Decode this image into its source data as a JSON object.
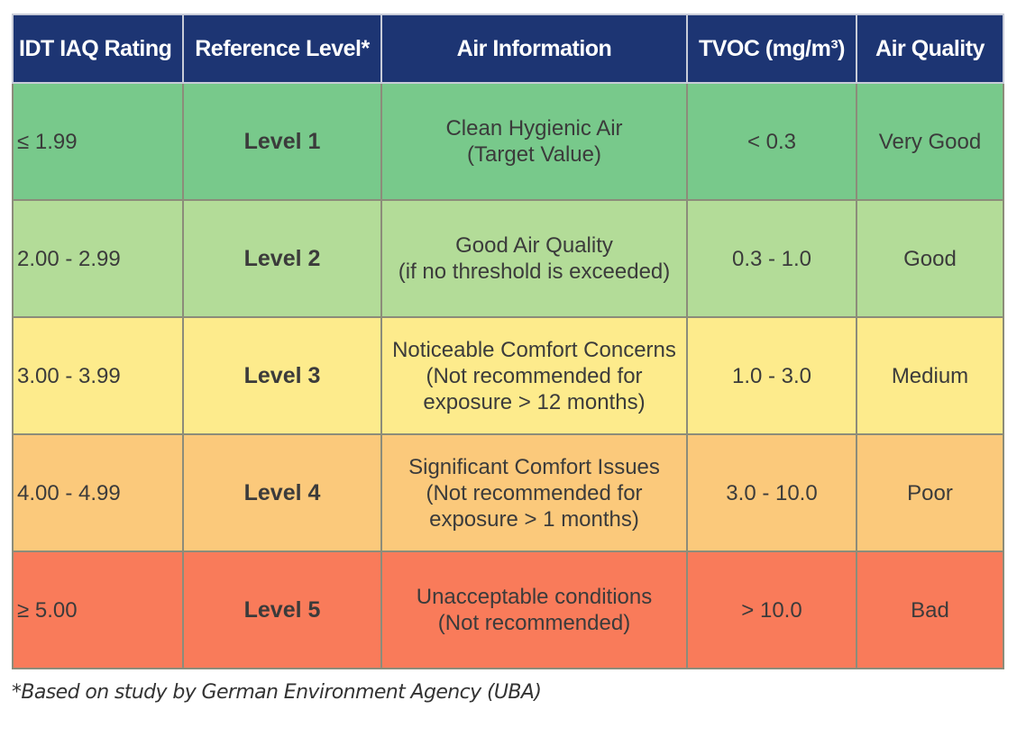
{
  "table": {
    "headers": [
      "IDT IAQ Rating",
      "Reference Level*",
      "Air Information",
      "TVOC (mg/m³)",
      "Air Quality"
    ],
    "rows": [
      {
        "rating": "≤ 1.99",
        "level": "Level 1",
        "info": [
          "Clean Hygienic Air",
          "(Target Value)"
        ],
        "tvoc": "< 0.3",
        "quality": "Very Good",
        "color": "#78c98b"
      },
      {
        "rating": "2.00 - 2.99",
        "level": "Level 2",
        "info": [
          "Good Air Quality",
          "(if no threshold is exceeded)"
        ],
        "tvoc": "0.3 - 1.0",
        "quality": "Good",
        "color": "#b3dc98"
      },
      {
        "rating": "3.00 - 3.99",
        "level": "Level 3",
        "info": [
          "Noticeable Comfort Concerns",
          "(Not recommended for",
          "exposure > 12 months)"
        ],
        "tvoc": "1.0 - 3.0",
        "quality": "Medium",
        "color": "#fdeb8c"
      },
      {
        "rating": "4.00 - 4.99",
        "level": "Level 4",
        "info": [
          "Significant Comfort Issues",
          "(Not recommended for",
          "exposure > 1 months)"
        ],
        "tvoc": "3.0 - 10.0",
        "quality": "Poor",
        "color": "#fbc97b"
      },
      {
        "rating": "≥ 5.00",
        "level": "Level 5",
        "info": [
          "Unacceptable conditions",
          "(Not recommended)"
        ],
        "tvoc": "> 10.0",
        "quality": "Bad",
        "color": "#f97b5a"
      }
    ]
  },
  "footnote": "*Based on study by German Environment Agency (UBA)"
}
